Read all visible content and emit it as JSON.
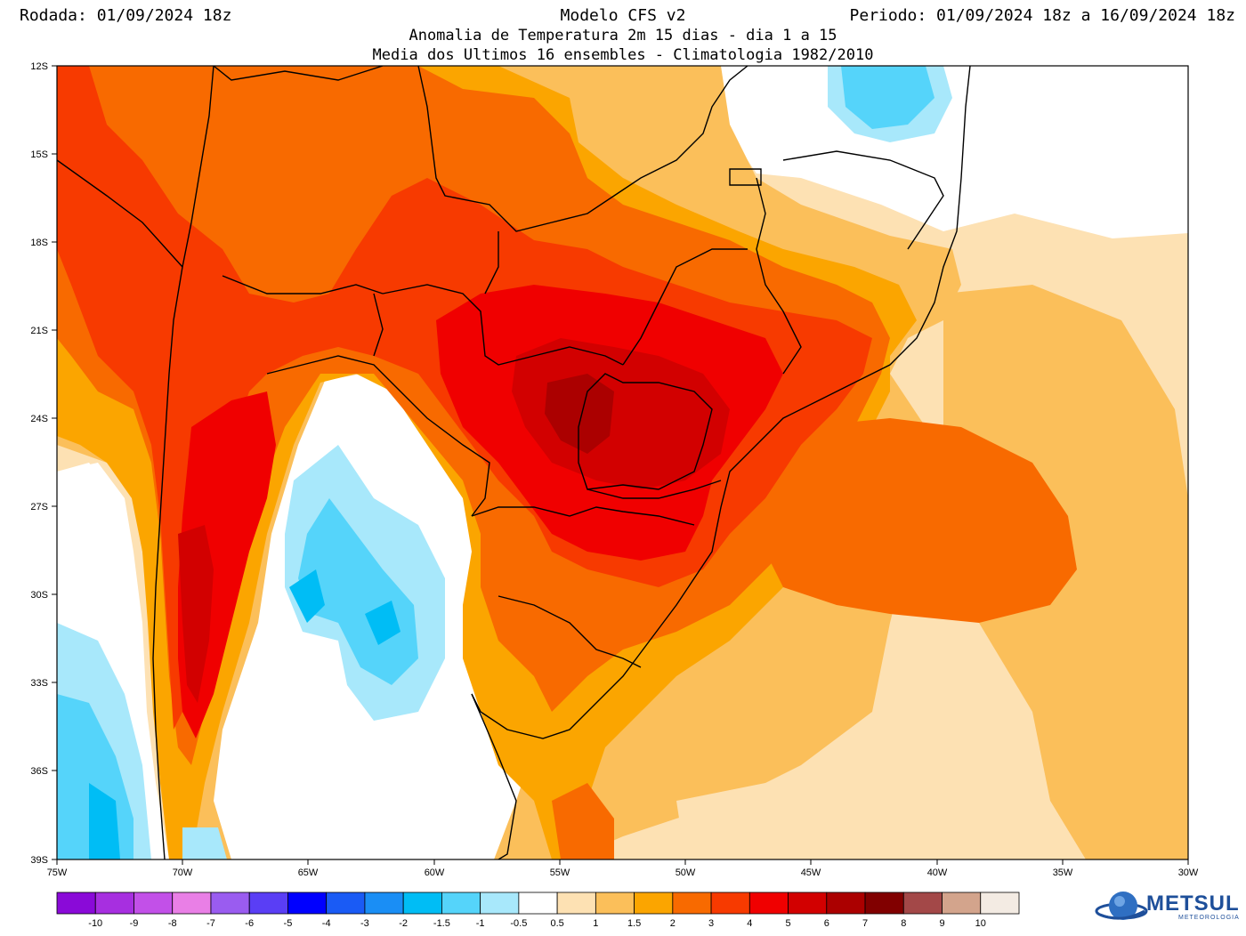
{
  "header": {
    "run": "Rodada: 01/09/2024 18z",
    "model": "Modelo CFS v2",
    "period": "Periodo: 01/09/2024 18z a 16/09/2024 18z",
    "subtitle1": "Anomalia de Temperatura 2m 15 dias - dia 1 a 15",
    "subtitle2": "Media dos Ultimos 16 ensembles - Climatologia 1982/2010"
  },
  "map": {
    "lon_range": [
      -75,
      -30
    ],
    "lat_range": [
      -39,
      -12
    ],
    "lat_ticks": [
      "12S",
      "15S",
      "18S",
      "21S",
      "24S",
      "27S",
      "30S",
      "33S",
      "36S",
      "39S"
    ],
    "lon_ticks": [
      "75W",
      "70W",
      "65W",
      "60W",
      "55W",
      "50W",
      "45W",
      "40W",
      "35W",
      "30W"
    ]
  },
  "colorbar": {
    "labels": [
      "-10",
      "-9",
      "-8",
      "-7",
      "-6",
      "-5",
      "-4",
      "-3",
      "-2",
      "-1.5",
      "-1",
      "-0.5",
      "0.5",
      "1",
      "1.5",
      "2",
      "3",
      "4",
      "5",
      "6",
      "7",
      "8",
      "9",
      "10"
    ],
    "colors": [
      "#8a0ad8",
      "#a72fe0",
      "#c250e8",
      "#e97fe6",
      "#9a5cf0",
      "#5a3ef5",
      "#0000ff",
      "#1a5bf5",
      "#1a8ef5",
      "#00bdf5",
      "#55d4fa",
      "#a8e8fb",
      "#ffffff",
      "#fde1b3",
      "#fbbf5a",
      "#fba500",
      "#f86a00",
      "#f73a00",
      "#f00000",
      "#d20000",
      "#ab0000",
      "#810000",
      "#a34848",
      "#d3a48c",
      "#f3ebe3"
    ]
  },
  "logo": {
    "name": "METSUL",
    "tagline": "METEOROLOGIA",
    "color": "#1e4f9a"
  }
}
